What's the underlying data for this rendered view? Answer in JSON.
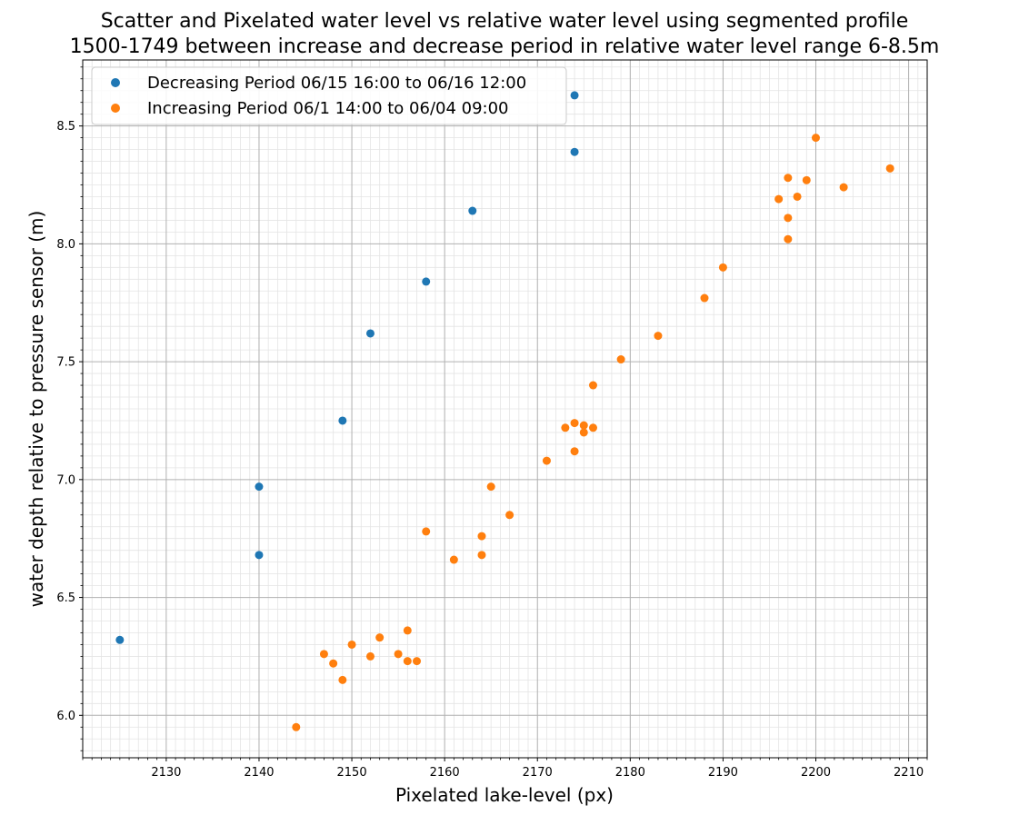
{
  "chart_data": {
    "type": "scatter",
    "title_lines": [
      "Scatter and Pixelated water level vs relative water level using segmented profile",
      "1500-1749 between increase and decrease period in relative water level range 6-8.5m"
    ],
    "xlabel": "Pixelated lake-level (px)",
    "ylabel": "water depth relative to pressure sensor (m)",
    "xlim": [
      2121,
      2212
    ],
    "ylim": [
      5.82,
      8.78
    ],
    "x_ticks": [
      2130,
      2140,
      2150,
      2160,
      2170,
      2180,
      2190,
      2200,
      2210
    ],
    "x_tick_labels": [
      "2130",
      "2140",
      "2150",
      "2160",
      "2170",
      "2180",
      "2190",
      "2200",
      "2210"
    ],
    "y_ticks": [
      6.0,
      6.5,
      7.0,
      7.5,
      8.0,
      8.5
    ],
    "y_tick_labels": [
      "6.0",
      "6.5",
      "7.0",
      "7.5",
      "8.0",
      "8.5"
    ],
    "grid": true,
    "minor_grid": true,
    "legend_position": "top-left",
    "series": [
      {
        "name": "Decreasing Period 06/15 16:00 to 06/16 12:00",
        "color": "#1f77b4",
        "points": [
          [
            2125,
            6.32
          ],
          [
            2140,
            6.68
          ],
          [
            2140,
            6.97
          ],
          [
            2149,
            7.25
          ],
          [
            2152,
            7.62
          ],
          [
            2158,
            7.84
          ],
          [
            2163,
            8.14
          ],
          [
            2174,
            8.39
          ],
          [
            2174,
            8.63
          ]
        ]
      },
      {
        "name": "Increasing Period 06/1 14:00 to 06/04 09:00",
        "color": "#ff7f0e",
        "points": [
          [
            2144,
            5.95
          ],
          [
            2147,
            6.26
          ],
          [
            2148,
            6.22
          ],
          [
            2149,
            6.15
          ],
          [
            2150,
            6.3
          ],
          [
            2152,
            6.25
          ],
          [
            2153,
            6.33
          ],
          [
            2155,
            6.26
          ],
          [
            2156,
            6.23
          ],
          [
            2156,
            6.36
          ],
          [
            2157,
            6.23
          ],
          [
            2158,
            6.78
          ],
          [
            2161,
            6.66
          ],
          [
            2164,
            6.68
          ],
          [
            2164,
            6.76
          ],
          [
            2165,
            6.97
          ],
          [
            2167,
            6.85
          ],
          [
            2171,
            7.08
          ],
          [
            2173,
            7.22
          ],
          [
            2174,
            7.12
          ],
          [
            2174,
            7.24
          ],
          [
            2175,
            7.2
          ],
          [
            2175,
            7.23
          ],
          [
            2176,
            7.22
          ],
          [
            2176,
            7.4
          ],
          [
            2179,
            7.51
          ],
          [
            2183,
            7.61
          ],
          [
            2188,
            7.77
          ],
          [
            2190,
            7.9
          ],
          [
            2196,
            8.19
          ],
          [
            2197,
            8.02
          ],
          [
            2197,
            8.11
          ],
          [
            2197,
            8.28
          ],
          [
            2198,
            8.2
          ],
          [
            2199,
            8.27
          ],
          [
            2200,
            8.45
          ],
          [
            2203,
            8.24
          ],
          [
            2208,
            8.32
          ]
        ]
      }
    ]
  }
}
